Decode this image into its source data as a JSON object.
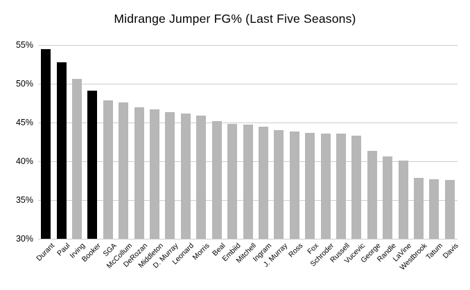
{
  "chart_data": {
    "type": "bar",
    "title": "Midrange Jumper FG% (Last Five Seasons)",
    "categories": [
      "Durant",
      "Paul",
      "Irving",
      "Booker",
      "SGA",
      "McCollum",
      "DeRozan",
      "Middleton",
      "D. Murray",
      "Leonard",
      "Morris",
      "Beal",
      "Embiid",
      "Mitchell",
      "Ingram",
      "J. Murray",
      "Ross",
      "Fox",
      "Schroder",
      "Russell",
      "Vucevic",
      "George",
      "Randle",
      "LaVine",
      "Westbrook",
      "Tatum",
      "Davis"
    ],
    "values": [
      54.5,
      52.8,
      50.6,
      49.1,
      47.9,
      47.6,
      47.0,
      46.7,
      46.3,
      46.2,
      45.9,
      45.2,
      44.8,
      44.7,
      44.5,
      44.0,
      43.8,
      43.7,
      43.6,
      43.6,
      43.3,
      41.3,
      40.6,
      40.1,
      37.9,
      37.7,
      37.6
    ],
    "highlight_indices": [
      0,
      1,
      3
    ],
    "xlabel": "",
    "ylabel": "",
    "ylim": [
      30,
      55
    ],
    "ytick_values": [
      55,
      50,
      45,
      40,
      35,
      30
    ],
    "ytick_labels": [
      "55%",
      "50%",
      "45%",
      "40%",
      "35%",
      "30%"
    ],
    "grid": "horizontal",
    "legend": "none",
    "colors": {
      "bar_default": "#b7b7b7",
      "bar_highlight": "#000000",
      "gridline": "#cccccc",
      "text": "#000000",
      "background": "#ffffff"
    }
  }
}
